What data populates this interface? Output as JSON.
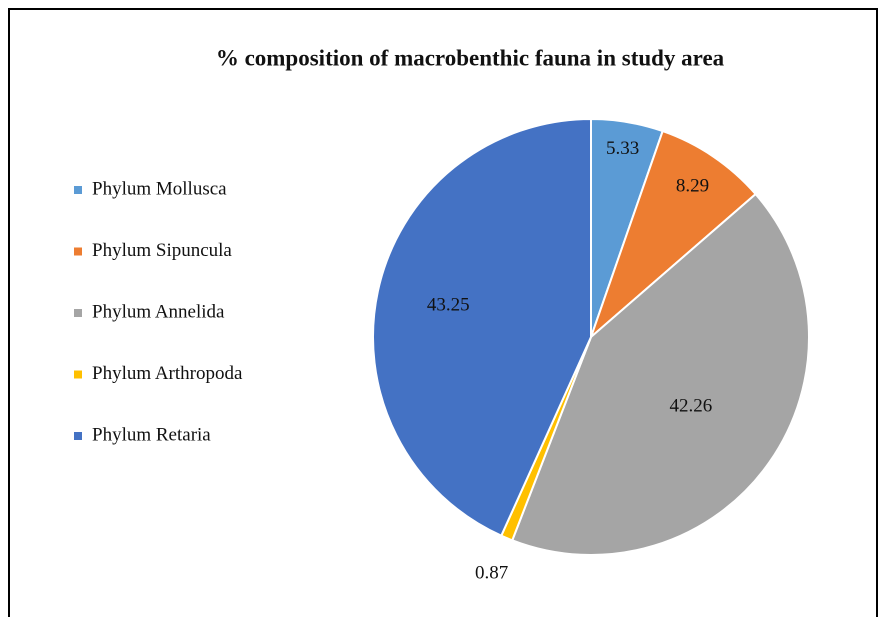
{
  "chart_data": {
    "type": "pie",
    "title": "% composition of macrobenthic fauna in study area",
    "categories": [
      "Phylum Mollusca",
      "Phylum Sipuncula",
      "Phylum Annelida",
      "Phylum Arthropoda",
      "Phylum Retaria"
    ],
    "values": [
      5.33,
      8.29,
      42.26,
      0.87,
      43.25
    ],
    "colors": [
      "#5b9bd5",
      "#ed7d31",
      "#a5a5a5",
      "#ffc000",
      "#4472c4"
    ],
    "legend": "left"
  }
}
